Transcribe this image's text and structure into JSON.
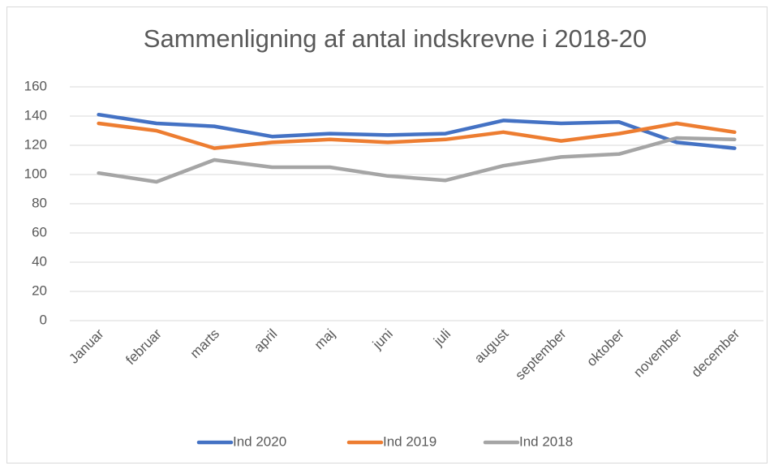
{
  "chart_data": {
    "type": "line",
    "title": "Sammenligning af antal indskrevne i 2018-20",
    "categories": [
      "Januar",
      "februar",
      "marts",
      "april",
      "maj",
      "juni",
      "juli",
      "august",
      "september",
      "oktober",
      "november",
      "december"
    ],
    "series": [
      {
        "name": "Ind 2020",
        "color": "#4472c4",
        "values": [
          141,
          135,
          133,
          126,
          128,
          127,
          128,
          137,
          135,
          136,
          122,
          118
        ]
      },
      {
        "name": "Ind 2019",
        "color": "#ed7d31",
        "values": [
          135,
          130,
          118,
          122,
          124,
          122,
          124,
          129,
          123,
          128,
          135,
          129
        ]
      },
      {
        "name": "Ind 2018",
        "color": "#a5a5a5",
        "values": [
          101,
          95,
          110,
          105,
          105,
          99,
          96,
          106,
          112,
          114,
          125,
          124
        ]
      }
    ],
    "ylim": [
      0,
      160
    ],
    "yticks": [
      0,
      20,
      40,
      60,
      80,
      100,
      120,
      140,
      160
    ],
    "grid": true,
    "legend": "bottom"
  }
}
